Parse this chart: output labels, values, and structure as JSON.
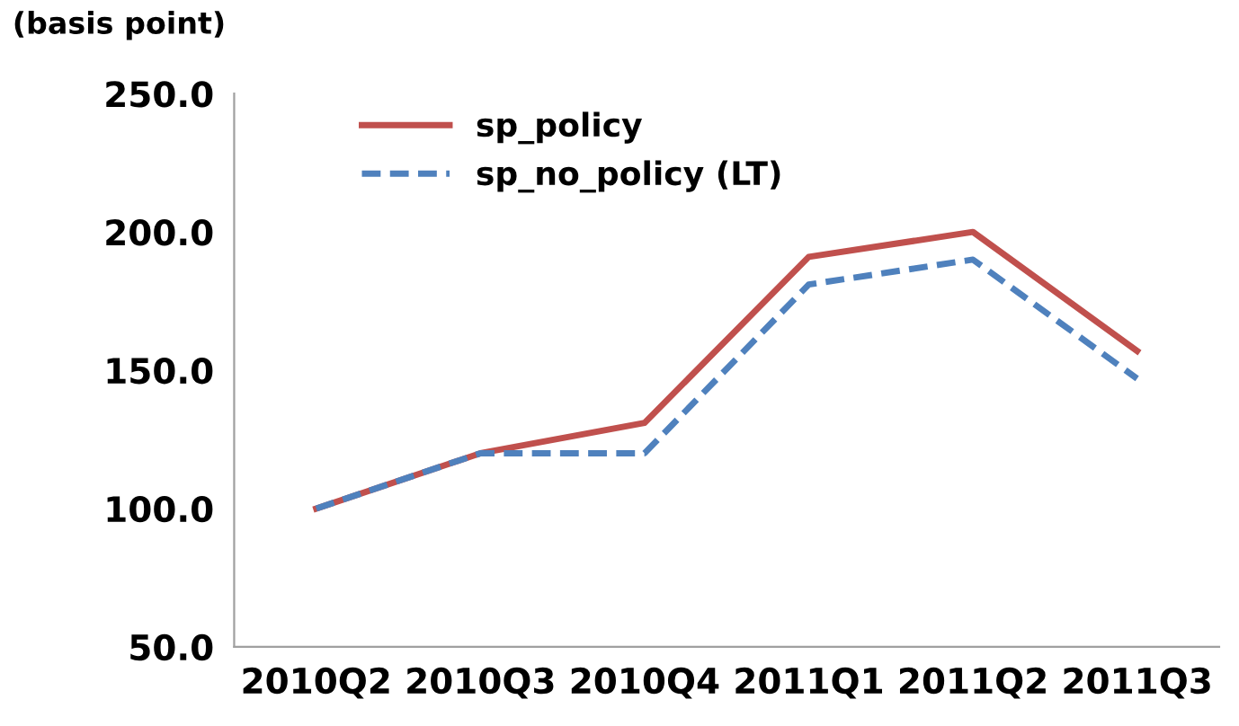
{
  "chart_data": {
    "type": "line",
    "ylabel": "(basis point)",
    "categories": [
      "2010Q2",
      "2010Q3",
      "2010Q4",
      "2011Q1",
      "2011Q2",
      "2011Q3"
    ],
    "series": [
      {
        "name": "sp_policy",
        "color": "#c0504d",
        "line_style": "solid",
        "values": [
          100,
          120,
          131,
          191,
          200,
          157
        ]
      },
      {
        "name": "sp_no_policy (LT)",
        "color": "#4f81bd",
        "line_style": "dashed",
        "values": [
          100,
          120,
          120,
          181,
          190,
          147
        ]
      }
    ],
    "ylim": [
      50,
      250
    ],
    "yticks": [
      {
        "value": 50,
        "label": "50.0"
      },
      {
        "value": 100,
        "label": "100.0"
      },
      {
        "value": 150,
        "label": "150.0"
      },
      {
        "value": 200,
        "label": "200.0"
      },
      {
        "value": 250,
        "label": "250.0"
      }
    ],
    "grid": false,
    "legend": "top left",
    "marker": "none"
  }
}
